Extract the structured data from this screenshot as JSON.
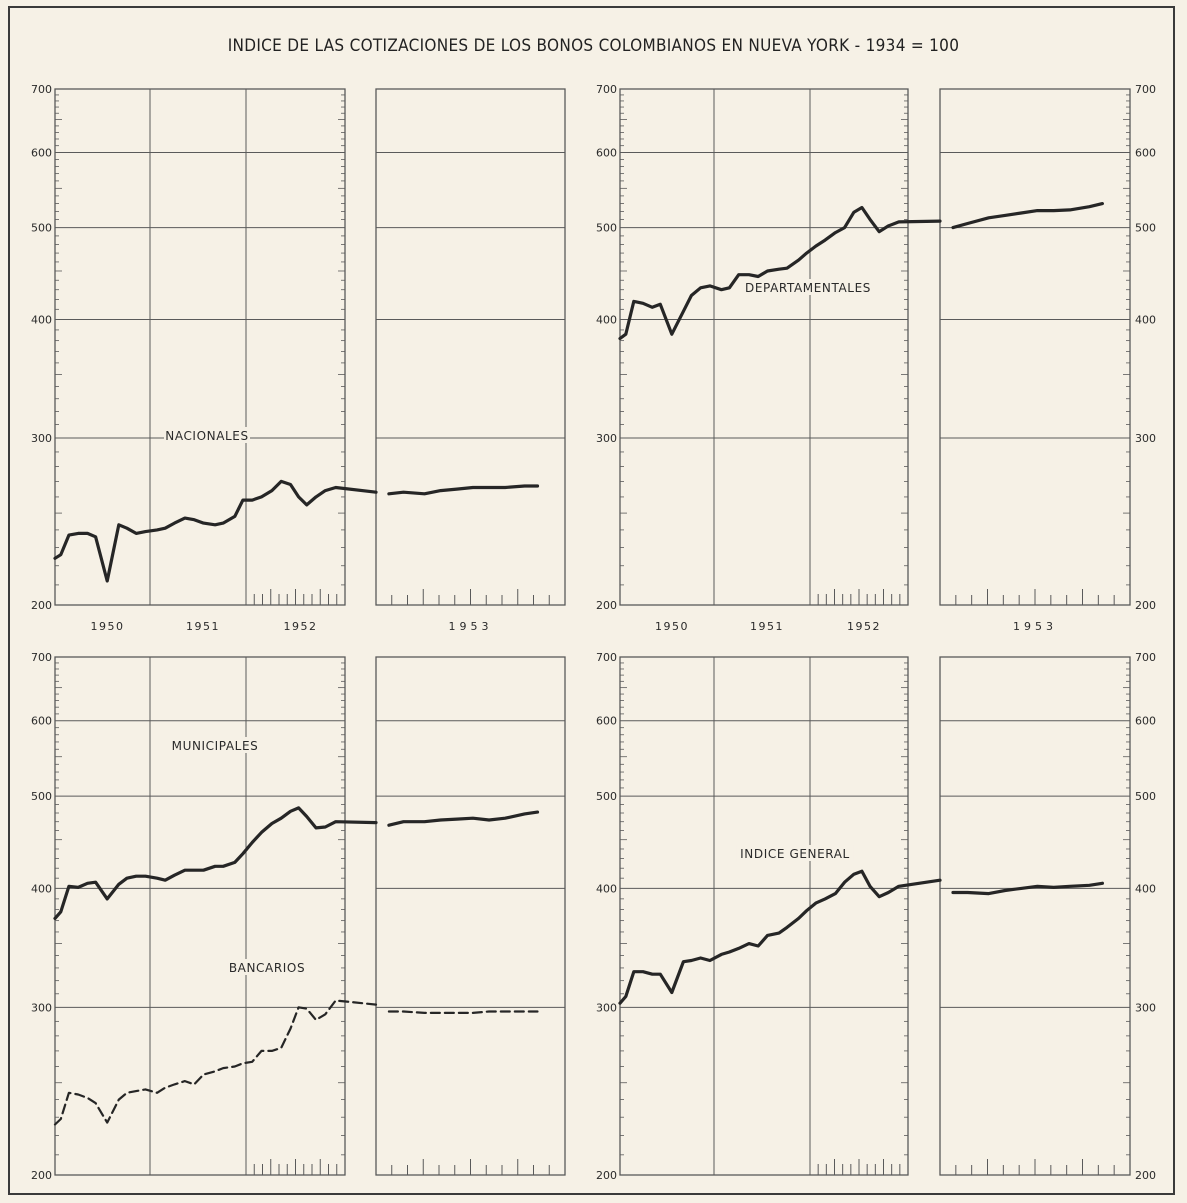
{
  "title": "INDICE DE LAS COTIZACIONES DE LOS BONOS COLOMBIANOS EN NUEVA YORK - 1934 = 100",
  "axis": {
    "y_ticks": [
      200,
      300,
      400,
      500,
      600,
      700
    ],
    "year_labels": [
      "1950",
      "1951",
      "1952",
      "1953"
    ]
  },
  "colors": {
    "line": "#262626",
    "grid": "#5a5a5a",
    "paper": "#f6f1e6"
  },
  "chart_data": [
    {
      "type": "line",
      "scale": "log",
      "ylim": [
        200,
        700
      ],
      "xlim": [
        1950.0,
        1953.67
      ],
      "series": [
        {
          "name": "NACIONALES",
          "style": "solid",
          "x": [
            1950.0,
            1950.05,
            1950.12,
            1950.2,
            1950.28,
            1950.35,
            1950.45,
            1950.55,
            1950.62,
            1950.7,
            1950.78,
            1950.88,
            1950.95,
            1951.03,
            1951.12,
            1951.2,
            1951.28,
            1951.38,
            1951.45,
            1951.55,
            1951.62,
            1951.7,
            1951.78,
            1951.87,
            1951.95,
            1952.03,
            1952.1,
            1952.17,
            1952.25,
            1952.33,
            1952.42,
            1952.5,
            1952.58,
            1952.67,
            1952.8,
            1952.9,
            1953.0,
            1953.1,
            1953.2,
            1953.3,
            1953.42,
            1953.5
          ],
          "y": [
            224,
            226,
            237,
            238,
            238,
            236,
            212,
            243,
            241,
            238,
            239,
            240,
            241,
            244,
            247,
            246,
            244,
            243,
            244,
            248,
            258,
            258,
            260,
            264,
            270,
            268,
            260,
            255,
            260,
            264,
            266,
            263,
            262,
            263,
            262,
            264,
            265,
            266,
            266,
            266,
            267,
            267
          ]
        },
        {
          "name": "MUNICIPALES",
          "style": "solid",
          "x": [
            1950.0,
            1950.05,
            1950.12,
            1950.2,
            1950.28,
            1950.35,
            1950.45,
            1950.55,
            1950.62,
            1950.7,
            1950.78,
            1950.88,
            1950.95,
            1951.03,
            1951.12,
            1951.2,
            1951.28,
            1951.38,
            1951.45,
            1951.55,
            1951.62,
            1951.7,
            1951.78,
            1951.87,
            1951.95,
            1952.03,
            1952.1,
            1952.17,
            1952.25,
            1952.33,
            1952.42,
            1952.5,
            1952.58,
            1952.67,
            1952.8,
            1952.9,
            1953.0,
            1953.1,
            1953.2,
            1953.3,
            1953.42,
            1953.5
          ],
          "y": [
            372,
            378,
            402,
            401,
            405,
            406,
            390,
            404,
            410,
            412,
            412,
            410,
            408,
            413,
            418,
            418,
            418,
            422,
            422,
            426,
            435,
            447,
            458,
            468,
            474,
            482,
            486,
            476,
            463,
            464,
            470,
            469,
            466,
            470,
            470,
            472,
            473,
            474,
            472,
            474,
            479,
            481
          ]
        },
        {
          "name": "BANCARIOS",
          "style": "dashed",
          "x": [
            1950.0,
            1950.05,
            1950.12,
            1950.2,
            1950.28,
            1950.35,
            1950.45,
            1950.55,
            1950.62,
            1950.7,
            1950.78,
            1950.88,
            1950.95,
            1951.03,
            1951.12,
            1951.2,
            1951.28,
            1951.38,
            1951.45,
            1951.55,
            1951.62,
            1951.7,
            1951.78,
            1951.87,
            1951.95,
            1952.03,
            1952.1,
            1952.17,
            1952.25,
            1952.33,
            1952.42,
            1952.5,
            1952.58,
            1952.67,
            1952.8,
            1952.9,
            1953.0,
            1953.1,
            1953.2,
            1953.3,
            1953.42,
            1953.5
          ],
          "y": [
            226,
            229,
            244,
            243,
            241,
            238,
            227,
            240,
            244,
            245,
            246,
            244,
            247,
            249,
            251,
            249,
            255,
            257,
            259,
            260,
            262,
            263,
            270,
            270,
            272,
            285,
            300,
            299,
            291,
            295,
            305,
            302,
            297,
            297,
            296,
            296,
            296,
            296,
            297,
            297,
            297,
            297
          ]
        },
        {
          "name": "DEPARTAMENTALES",
          "style": "solid",
          "x": [
            1950.0,
            1950.05,
            1950.12,
            1950.2,
            1950.28,
            1950.35,
            1950.45,
            1950.55,
            1950.62,
            1950.7,
            1950.78,
            1950.88,
            1950.95,
            1951.03,
            1951.12,
            1951.2,
            1951.28,
            1951.38,
            1951.45,
            1951.55,
            1951.62,
            1951.7,
            1951.78,
            1951.87,
            1951.95,
            1952.03,
            1952.1,
            1952.17,
            1952.25,
            1952.33,
            1952.42,
            1952.5,
            1952.58,
            1952.67,
            1952.8,
            1952.9,
            1953.0,
            1953.1,
            1953.2,
            1953.3,
            1953.42,
            1953.5
          ],
          "y": [
            382,
            386,
            418,
            416,
            412,
            415,
            386,
            408,
            424,
            432,
            434,
            430,
            432,
            446,
            446,
            444,
            450,
            452,
            453,
            462,
            470,
            478,
            485,
            494,
            500,
            519,
            525,
            510,
            495,
            502,
            507,
            508,
            500,
            505,
            512,
            515,
            518,
            521,
            521,
            522,
            526,
            530
          ]
        },
        {
          "name": "INDICE GENERAL",
          "style": "solid",
          "x": [
            1950.0,
            1950.05,
            1950.12,
            1950.2,
            1950.28,
            1950.35,
            1950.45,
            1950.55,
            1950.62,
            1950.7,
            1950.78,
            1950.88,
            1950.95,
            1951.03,
            1951.12,
            1951.2,
            1951.28,
            1951.38,
            1951.45,
            1951.55,
            1951.62,
            1951.7,
            1951.78,
            1951.87,
            1951.95,
            1952.03,
            1952.1,
            1952.17,
            1952.25,
            1952.33,
            1952.42,
            1952.5,
            1952.58,
            1952.67,
            1952.8,
            1952.9,
            1953.0,
            1953.1,
            1953.2,
            1953.3,
            1953.42,
            1953.5
          ],
          "y": [
            303,
            308,
            327,
            327,
            325,
            325,
            311,
            335,
            336,
            338,
            336,
            341,
            343,
            346,
            350,
            348,
            357,
            359,
            364,
            372,
            379,
            386,
            390,
            395,
            406,
            414,
            417,
            402,
            392,
            396,
            402,
            408,
            396,
            396,
            395,
            398,
            400,
            402,
            401,
            402,
            403,
            405
          ]
        }
      ]
    }
  ]
}
